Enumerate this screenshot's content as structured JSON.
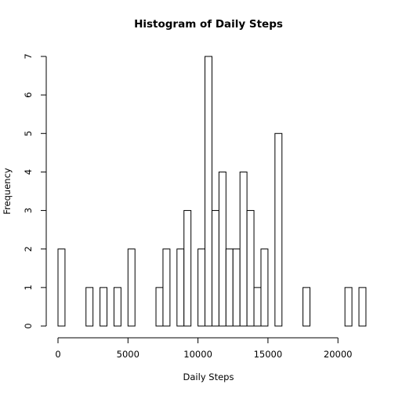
{
  "chart_data": {
    "type": "bar",
    "subtype": "histogram",
    "title": "Histogram of Daily Steps",
    "xlabel": "Daily Steps",
    "ylabel": "Frequency",
    "bin_width": 500,
    "bin_start": 0,
    "xlim": [
      0,
      21500
    ],
    "ylim": [
      0,
      7
    ],
    "x_ticks": [
      0,
      5000,
      10000,
      15000,
      20000
    ],
    "x_tick_labels": [
      "0",
      "5000",
      "10000",
      "15000",
      "20000"
    ],
    "y_ticks": [
      0,
      1,
      2,
      3,
      4,
      5,
      6,
      7
    ],
    "y_tick_labels": [
      "0",
      "1",
      "2",
      "3",
      "4",
      "5",
      "6",
      "7"
    ],
    "counts": [
      2,
      0,
      0,
      0,
      1,
      0,
      1,
      0,
      1,
      0,
      2,
      0,
      0,
      0,
      1,
      2,
      0,
      2,
      3,
      0,
      2,
      7,
      3,
      4,
      2,
      2,
      4,
      3,
      1,
      2,
      0,
      5,
      0,
      0,
      0,
      1,
      0,
      0,
      0,
      0,
      0,
      1,
      0,
      1
    ],
    "grid": false,
    "legend": "none"
  }
}
